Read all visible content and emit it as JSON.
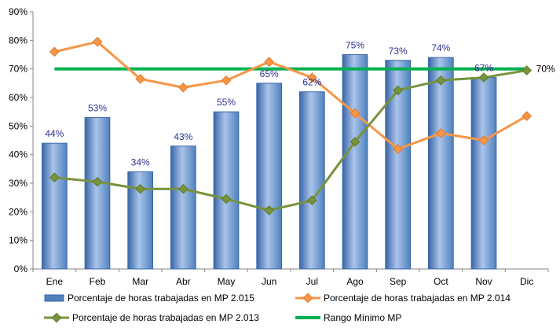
{
  "colors": {
    "bar": "#4f81bd",
    "bar_dark": "#3a66a8",
    "bar_light": "#a9c4ea",
    "series_2014": "#f79646",
    "series_2013": "#77933c",
    "min_line": "#00b050",
    "data_label": "#2e3192"
  },
  "chart_data": {
    "type": "bar",
    "title": "",
    "xlabel": "",
    "ylabel": "",
    "ylim": [
      0,
      90
    ],
    "yticks": [
      "0%",
      "10%",
      "20%",
      "30%",
      "40%",
      "50%",
      "60%",
      "70%",
      "80%",
      "90%"
    ],
    "y_unit": "%",
    "grid": false,
    "legend_position": "bottom",
    "categories": [
      "Ene",
      "Feb",
      "Mar",
      "Abr",
      "May",
      "Jun",
      "Jul",
      "Ago",
      "Sep",
      "Oct",
      "Nov",
      "Dic"
    ],
    "series": [
      {
        "name": "Porcentaje de horas trabajadas en MP 2.015",
        "type": "bar",
        "values": [
          44,
          53,
          34,
          43,
          55,
          65,
          62,
          75,
          73,
          74,
          67,
          null
        ],
        "labels": [
          "44%",
          "53%",
          "34%",
          "43%",
          "55%",
          "65%",
          "62%",
          "75%",
          "73%",
          "74%",
          "67%",
          ""
        ]
      },
      {
        "name": "Porcentaje de horas trabajadas en MP 2.014",
        "type": "line",
        "values": [
          76,
          79.5,
          66.5,
          63.5,
          66,
          72.5,
          67,
          54.5,
          42,
          47.5,
          45,
          53.5
        ]
      },
      {
        "name": "Porcentaje de horas trabajadas en MP 2.013",
        "type": "line",
        "values": [
          32,
          30.5,
          28,
          28,
          24.5,
          20.5,
          24,
          44.5,
          62.5,
          66,
          67,
          69.5
        ]
      },
      {
        "name": "Rango Mínimo MP",
        "type": "line",
        "values": [
          70,
          70,
          70,
          70,
          70,
          70,
          70,
          70,
          70,
          70,
          70,
          70
        ],
        "end_label": "70%"
      }
    ]
  }
}
